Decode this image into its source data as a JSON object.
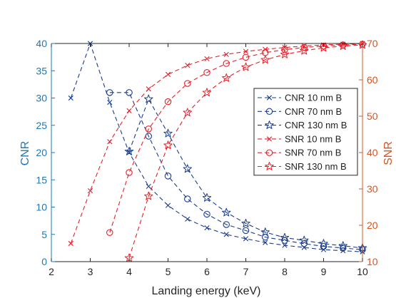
{
  "chart_data": {
    "type": "line",
    "title": "",
    "xlabel": "Landing energy  (keV)",
    "ylabel_left": "CNR",
    "ylabel_right": "SNR",
    "xlim": [
      2,
      10
    ],
    "ylim_left": [
      0,
      40
    ],
    "ylim_right": [
      10,
      70
    ],
    "x_ticks": [
      "2",
      "3",
      "4",
      "5",
      "6",
      "7",
      "8",
      "9",
      "10"
    ],
    "y_ticks_left": [
      "0",
      "5",
      "10",
      "15",
      "20",
      "25",
      "30",
      "35",
      "40"
    ],
    "y_ticks_right": [
      "10",
      "20",
      "30",
      "40",
      "50",
      "60",
      "70"
    ],
    "grid": false,
    "legend_position": "right",
    "colors": {
      "cnr": "#1a3d8f",
      "snr": "#e8202a",
      "left_axis": "#1f77b4",
      "right_axis": "#d9541e"
    },
    "series": [
      {
        "name": "CNR 10 nm B",
        "axis": "left",
        "marker": "x",
        "x": [
          2.5,
          3,
          3.5,
          4,
          4.5,
          5,
          5.5,
          6,
          6.5,
          7,
          7.5,
          8,
          8.5,
          9,
          9.5,
          10
        ],
        "y": [
          30,
          40,
          29.2,
          20,
          13.8,
          10.3,
          7.8,
          6.2,
          5.0,
          4.2,
          3.5,
          3.0,
          2.6,
          2.2,
          2.0,
          1.8
        ]
      },
      {
        "name": "CNR 70 nm B",
        "axis": "left",
        "marker": "o",
        "x": [
          3.5,
          4,
          4.5,
          5,
          5.5,
          6,
          6.5,
          7,
          7.5,
          8,
          8.5,
          9,
          9.5,
          10
        ],
        "y": [
          31,
          31,
          23,
          15.7,
          11.5,
          8.7,
          6.8,
          5.7,
          4.5,
          3.9,
          3.3,
          2.8,
          2.5,
          2.2
        ]
      },
      {
        "name": "CNR 130 nm B",
        "axis": "left",
        "marker": "star",
        "x": [
          4,
          4.5,
          5,
          5.5,
          6,
          6.5,
          7,
          7.5,
          8,
          8.5,
          9,
          9.5,
          10
        ],
        "y": [
          20.2,
          29.8,
          23.5,
          17,
          11.7,
          9,
          7,
          5.4,
          4.4,
          3.9,
          3.3,
          2.9,
          2.5
        ]
      },
      {
        "name": "SNR 10 nm B",
        "axis": "right",
        "marker": "x",
        "x": [
          2.5,
          3,
          3.5,
          4,
          4.5,
          5,
          5.5,
          6,
          6.5,
          7,
          7.5,
          8,
          8.5,
          9,
          9.5,
          10
        ],
        "y": [
          15,
          29.5,
          43,
          51.5,
          57.5,
          61.5,
          64,
          65.8,
          67,
          67.8,
          68.4,
          68.9,
          69.3,
          69.6,
          69.8,
          70
        ]
      },
      {
        "name": "SNR 70 nm B",
        "axis": "right",
        "marker": "o",
        "x": [
          3.5,
          4,
          4.5,
          5,
          5.5,
          6,
          6.5,
          7,
          7.5,
          8,
          8.5,
          9,
          9.5,
          10
        ],
        "y": [
          18,
          34.5,
          46.5,
          54,
          59,
          62,
          64.5,
          66.2,
          67.5,
          68.3,
          68.9,
          69.3,
          69.6,
          69.8
        ]
      },
      {
        "name": "SNR 130 nm B",
        "axis": "right",
        "marker": "star",
        "x": [
          4,
          4.5,
          5,
          5.5,
          6,
          6.5,
          7,
          7.5,
          8,
          8.5,
          9,
          9.5,
          10
        ],
        "y": [
          11,
          28,
          42,
          51,
          56.5,
          60.5,
          63.5,
          65.5,
          67,
          68,
          68.8,
          69.3,
          69.6
        ]
      }
    ]
  }
}
